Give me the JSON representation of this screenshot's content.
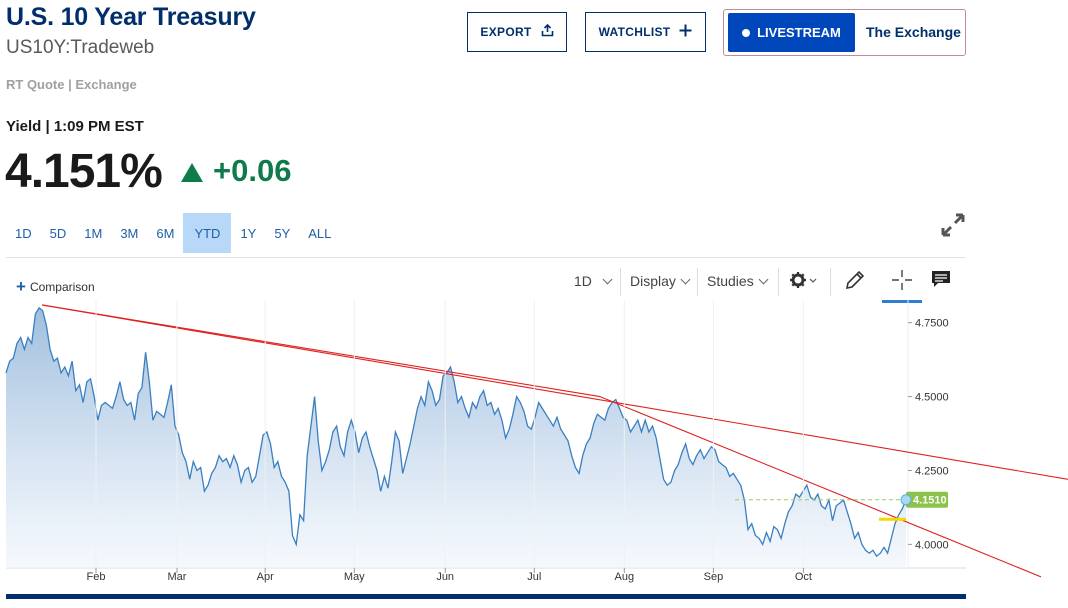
{
  "header": {
    "title": "U.S. 10 Year Treasury",
    "symbol": "US10Y:Tradeweb",
    "source": "RT Quote | Exchange"
  },
  "buttons": {
    "export": "EXPORT",
    "watchlist": "WATCHLIST",
    "livestream": "LIVESTREAM",
    "exchange": "The Exchange"
  },
  "quote": {
    "label": "Yield | 1:09 PM EST",
    "price": "4.151%",
    "change": "+0.06"
  },
  "ranges": [
    "1D",
    "5D",
    "1M",
    "3M",
    "6M",
    "YTD",
    "1Y",
    "5Y",
    "ALL"
  ],
  "active_range": "YTD",
  "toolbar": {
    "comparison": "Comparison",
    "interval": "1D",
    "display": "Display",
    "studies": "Studies"
  },
  "colors": {
    "brand": "#002f6c",
    "accent": "#0047bb",
    "up": "#0f7b4b",
    "series_line": "#3a7fc0",
    "trendline": "#e02020",
    "last_price_tag": "#8bc34a"
  },
  "chart_data": {
    "type": "area",
    "title": "",
    "xlabel": "",
    "ylabel": "",
    "x_ticks": [
      "Feb",
      "Mar",
      "Apr",
      "May",
      "Jun",
      "Jul",
      "Aug",
      "Sep",
      "Oct"
    ],
    "y_ticks": [
      "4.7500",
      "4.5000",
      "4.2500",
      "4.0000"
    ],
    "ylim": [
      3.92,
      4.82
    ],
    "last_value_label": "4.1510",
    "series": [
      {
        "values": [
          4.58,
          4.62,
          4.63,
          4.68,
          4.7,
          4.66,
          4.7,
          4.68,
          4.78,
          4.8,
          4.79,
          4.74,
          4.66,
          4.62,
          4.63,
          4.58,
          4.6,
          4.57,
          4.62,
          4.52,
          4.54,
          4.48,
          4.55,
          4.56,
          4.5,
          4.42,
          4.47,
          4.48,
          4.47,
          4.46,
          4.5,
          4.55,
          4.49,
          4.47,
          4.48,
          4.42,
          4.51,
          4.53,
          4.65,
          4.55,
          4.42,
          4.45,
          4.44,
          4.43,
          4.48,
          4.54,
          4.4,
          4.37,
          4.31,
          4.28,
          4.22,
          4.28,
          4.25,
          4.26,
          4.18,
          4.2,
          4.24,
          4.26,
          4.3,
          4.28,
          4.29,
          4.26,
          4.3,
          4.27,
          4.21,
          4.25,
          4.26,
          4.21,
          4.23,
          4.3,
          4.37,
          4.38,
          4.34,
          4.26,
          4.28,
          4.23,
          4.21,
          4.18,
          4.03,
          4.0,
          4.1,
          4.08,
          4.3,
          4.4,
          4.5,
          4.35,
          4.25,
          4.28,
          4.32,
          4.38,
          4.4,
          4.33,
          4.3,
          4.38,
          4.42,
          4.38,
          4.31,
          4.36,
          4.38,
          4.33,
          4.29,
          4.25,
          4.18,
          4.23,
          4.19,
          4.28,
          4.38,
          4.35,
          4.24,
          4.29,
          4.34,
          4.4,
          4.46,
          4.5,
          4.47,
          4.55,
          4.52,
          4.47,
          4.49,
          4.57,
          4.58,
          4.6,
          4.55,
          4.48,
          4.5,
          4.46,
          4.43,
          4.48,
          4.46,
          4.5,
          4.52,
          4.47,
          4.48,
          4.44,
          4.46,
          4.42,
          4.36,
          4.39,
          4.44,
          4.5,
          4.48,
          4.45,
          4.4,
          4.39,
          4.43,
          4.48,
          4.46,
          4.44,
          4.42,
          4.4,
          4.43,
          4.39,
          4.37,
          4.35,
          4.3,
          4.26,
          4.24,
          4.3,
          4.34,
          4.36,
          4.41,
          4.44,
          4.43,
          4.42,
          4.46,
          4.48,
          4.49,
          4.46,
          4.43,
          4.42,
          4.38,
          4.4,
          4.42,
          4.38,
          4.42,
          4.38,
          4.4,
          4.36,
          4.29,
          4.22,
          4.2,
          4.21,
          4.25,
          4.27,
          4.31,
          4.34,
          4.29,
          4.27,
          4.3,
          4.32,
          4.29,
          4.31,
          4.33,
          4.32,
          4.28,
          4.27,
          4.26,
          4.23,
          4.24,
          4.22,
          4.2,
          4.15,
          4.05,
          4.07,
          4.03,
          4.02,
          4.0,
          4.04,
          4.01,
          4.06,
          4.05,
          4.02,
          4.07,
          4.11,
          4.13,
          4.17,
          4.16,
          4.18,
          4.2,
          4.16,
          4.15,
          4.17,
          4.13,
          4.12,
          4.15,
          4.08,
          4.13,
          4.14,
          4.15,
          4.11,
          4.07,
          4.02,
          4.04,
          4.0,
          3.98,
          3.97,
          3.98,
          3.96,
          3.97,
          3.99,
          3.97,
          4.02,
          4.07,
          4.1,
          4.12,
          4.151
        ]
      }
    ],
    "trendlines": [
      {
        "from": {
          "t": 0.04,
          "value": 4.81
        },
        "to": {
          "t": 1.18,
          "value": 4.22
        }
      },
      {
        "from": {
          "t": 0.04,
          "value": 4.81
        },
        "to": {
          "t": 0.66,
          "value": 4.5
        }
      },
      {
        "from": {
          "t": 0.66,
          "value": 4.5
        },
        "to": {
          "t": 1.15,
          "value": 3.89
        }
      }
    ]
  }
}
